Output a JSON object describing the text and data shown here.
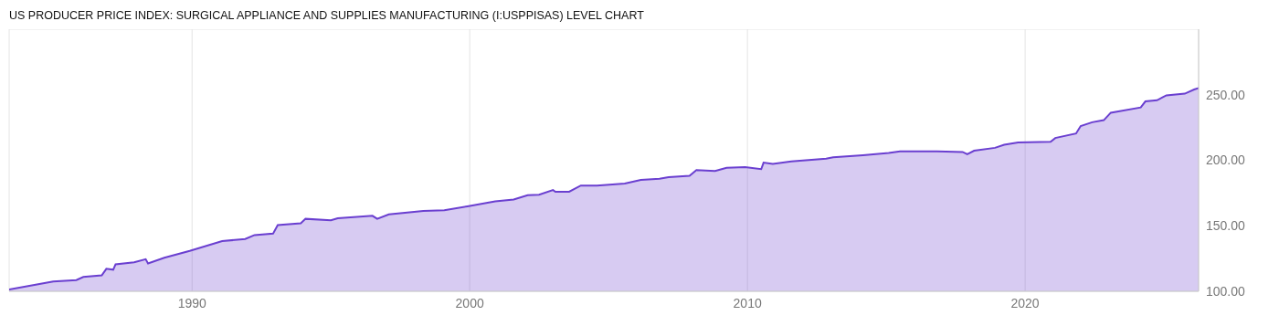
{
  "chart_data": {
    "type": "area",
    "title": "US PRODUCER PRICE INDEX: SURGICAL APPLIANCE AND SUPPLIES MANUFACTURING (I:USPPISAS) LEVEL CHART",
    "x": [
      "1983-06",
      "1984-06",
      "1985-01",
      "1985-11",
      "1986-02",
      "1986-10",
      "1986-12",
      "1987-03",
      "1987-04",
      "1987-12",
      "1988-05",
      "1988-06",
      "1989-01",
      "1989-12",
      "1991-02",
      "1991-12",
      "1992-04",
      "1992-12",
      "1993-02",
      "1993-12",
      "1994-02",
      "1995-01",
      "1995-04",
      "1996-07",
      "1996-09",
      "1997-02",
      "1998-05",
      "1999-02",
      "1999-12",
      "2000-12",
      "2001-08",
      "2002-02",
      "2002-07",
      "2003-01",
      "2003-02",
      "2003-08",
      "2004-01",
      "2004-08",
      "2005-08",
      "2006-03",
      "2006-11",
      "2007-03",
      "2007-12",
      "2008-03",
      "2008-11",
      "2009-04",
      "2009-12",
      "2010-07",
      "2010-08",
      "2010-12",
      "2011-08",
      "2012-11",
      "2013-02",
      "2014-03",
      "2015-02",
      "2015-07",
      "2016-11",
      "2017-10",
      "2017-12",
      "2018-03",
      "2018-12",
      "2019-04",
      "2019-10",
      "2020-12",
      "2021-02",
      "2021-11",
      "2022-01",
      "2022-06",
      "2022-11",
      "2023-02",
      "2024-03",
      "2024-05",
      "2024-10",
      "2025-02",
      "2025-10",
      "2026-02",
      "2026-04"
    ],
    "series": [
      {
        "color": "#6a3fd0",
        "values": [
          101.4,
          105.2,
          107.5,
          108.6,
          111,
          112.2,
          117.2,
          116.5,
          120.6,
          122.2,
          124.5,
          121.3,
          125.6,
          130.8,
          138.3,
          139.9,
          142.9,
          144,
          150.5,
          151.9,
          155.3,
          154.2,
          155.8,
          157.6,
          155.3,
          158.7,
          161.4,
          161.9,
          164.8,
          168.7,
          170,
          173.3,
          173.7,
          177.3,
          176,
          176,
          180.7,
          180.7,
          182.3,
          185,
          185.9,
          187.1,
          188.2,
          192.5,
          191.8,
          194.3,
          194.8,
          193.2,
          198.2,
          197.3,
          199.1,
          201.2,
          202.2,
          203.9,
          205.6,
          206.8,
          206.8,
          206.3,
          204.6,
          207.3,
          209.5,
          211.8,
          213.6,
          214.1,
          217,
          220.4,
          226.1,
          229,
          230.6,
          236.3,
          240.3,
          244.9,
          245.8,
          249.5,
          250.8,
          254,
          255.1
        ]
      }
    ],
    "xlim": [
      "1983-06",
      "2026-04"
    ],
    "xticks": [
      "1990",
      "2000",
      "2010",
      "2020"
    ],
    "ylim": [
      100,
      300
    ],
    "yticks": [
      {
        "value": 100,
        "label": "100.00"
      },
      {
        "value": 150,
        "label": "150.00"
      },
      {
        "value": 200,
        "label": "200.00"
      },
      {
        "value": 250,
        "label": "250.00"
      }
    ],
    "grid": true,
    "legend": false
  }
}
